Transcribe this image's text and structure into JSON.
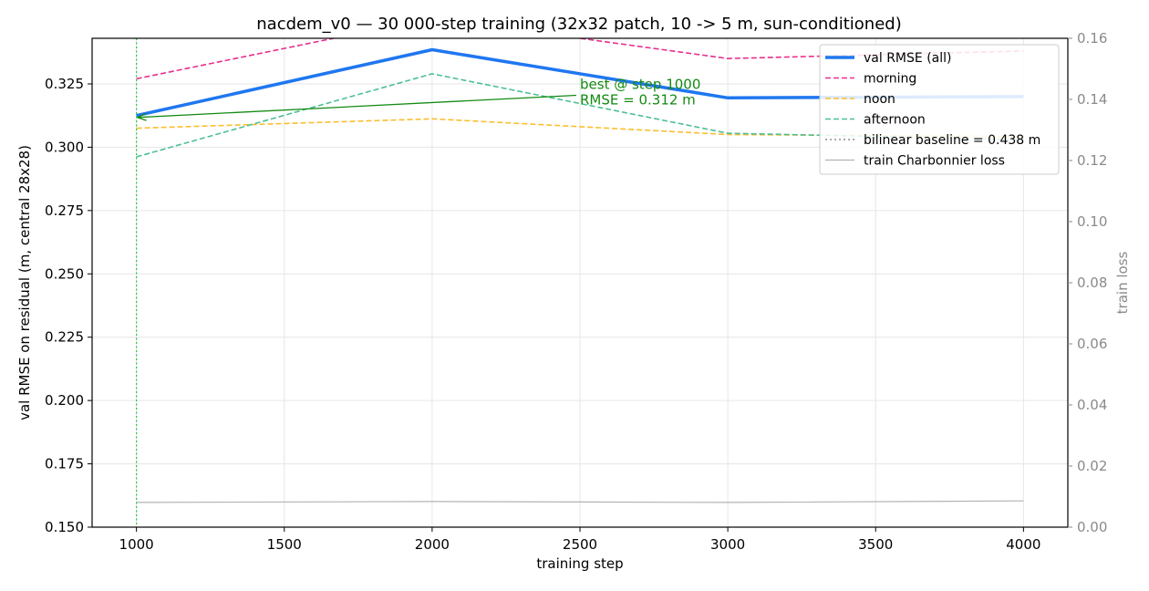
{
  "chart_data": {
    "type": "line",
    "title": "nacdem_v0 — 30 000-step training (32x32 patch, 10 -> 5 m, sun-conditioned)",
    "xlabel": "training step",
    "ylabel": "val RMSE on residual (m, central 28x28)",
    "ylabel_right": "train loss",
    "x": [
      1000,
      2000,
      3000,
      4000
    ],
    "xlim": [
      850,
      4150
    ],
    "ylim": [
      0.15,
      0.343
    ],
    "ylim_right": [
      0.0,
      0.16
    ],
    "x_ticks": [
      "1000",
      "1500",
      "2000",
      "2500",
      "3000",
      "3500",
      "4000"
    ],
    "y_ticks": [
      "0.150",
      "0.175",
      "0.200",
      "0.225",
      "0.250",
      "0.275",
      "0.300",
      "0.325"
    ],
    "y_ticks_right": [
      "0.00",
      "0.02",
      "0.04",
      "0.06",
      "0.08",
      "0.10",
      "0.12",
      "0.14",
      "0.16"
    ],
    "grid": true,
    "legend_position": "top-right",
    "series": [
      {
        "name": "val RMSE (all)",
        "axis": "left",
        "color": "#1f77f0",
        "style": "solid",
        "width": 3.5,
        "values": [
          0.3125,
          0.3385,
          0.3195,
          0.32
        ]
      },
      {
        "name": "morning",
        "axis": "left",
        "color": "#e8308c",
        "style": "dashed",
        "width": 1.6,
        "values": [
          0.327,
          0.351,
          0.335,
          0.338
        ]
      },
      {
        "name": "noon",
        "axis": "left",
        "color": "#fbbe2e",
        "style": "dashed",
        "width": 1.6,
        "values": [
          0.3075,
          0.3112,
          0.305,
          0.3042
        ]
      },
      {
        "name": "afternoon",
        "axis": "left",
        "color": "#4dbf94",
        "style": "dashed",
        "width": 1.6,
        "values": [
          0.2962,
          0.329,
          0.3055,
          0.303
        ]
      },
      {
        "name": "bilinear baseline = 0.438 m",
        "axis": "left",
        "color": "#aaaaaa",
        "style": "dotted",
        "width": 2,
        "values": [
          0.438,
          0.438,
          0.438,
          0.438
        ]
      },
      {
        "name": "train Charbonnier loss",
        "axis": "right",
        "color": "#b3b3b3",
        "style": "solid",
        "width": 1.2,
        "values": [
          0.0081,
          0.0084,
          0.0081,
          0.0086
        ]
      }
    ],
    "best_marker": {
      "x": 1000,
      "color": "#2ecc40"
    },
    "annotation": {
      "lines": [
        "best @ step 1000",
        "RMSE = 0.312 m"
      ],
      "color": "#138a13",
      "point": {
        "x": 1000,
        "y": 0.3125
      },
      "text_anchor": {
        "x": 2500,
        "y": 0.3205
      }
    }
  }
}
